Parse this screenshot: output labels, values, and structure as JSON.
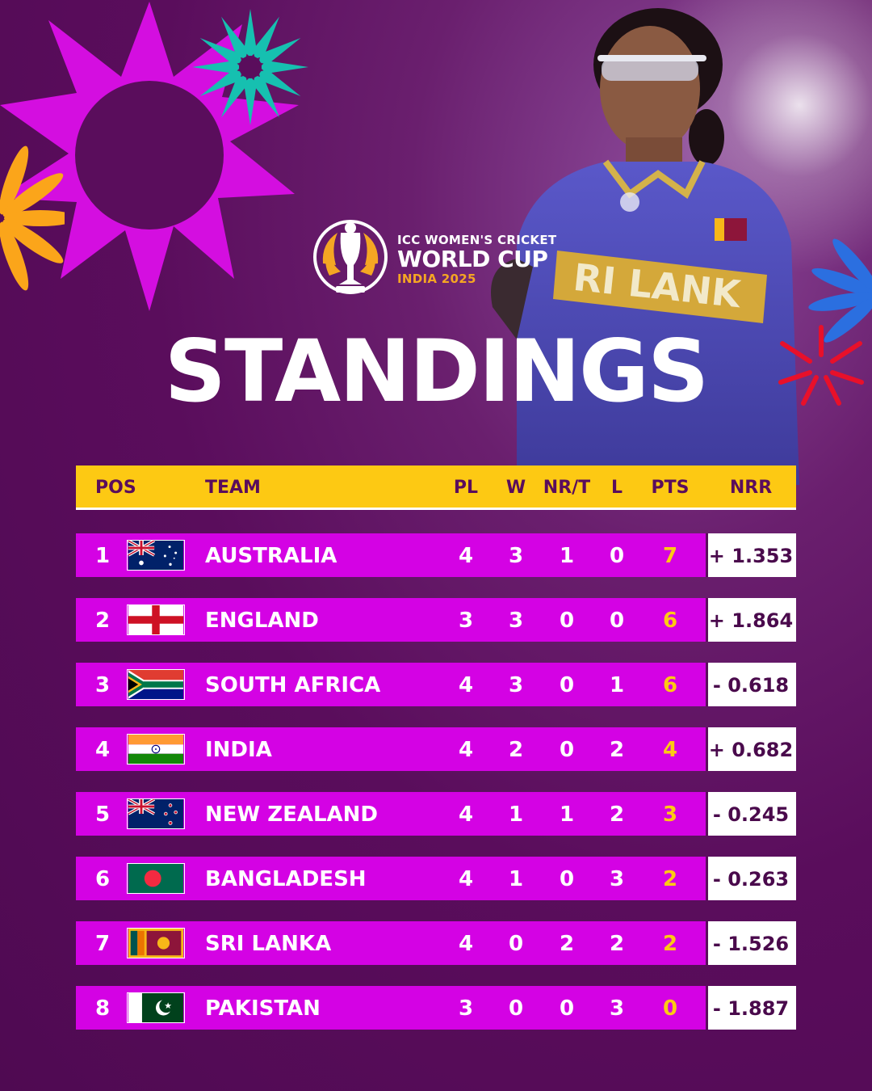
{
  "logo": {
    "line1": "ICC WOMEN'S CRICKET",
    "line2": "WORLD CUP",
    "line3": "INDIA 2025"
  },
  "title": "STANDINGS",
  "table": {
    "headers": {
      "pos": "POS",
      "team": "TEAM",
      "pl": "PL",
      "w": "W",
      "nrt": "NR/T",
      "l": "L",
      "pts": "PTS",
      "nrr": "NRR"
    },
    "rows": [
      {
        "pos": "1",
        "team": "AUSTRALIA",
        "flag": "australia-flag",
        "pl": "4",
        "w": "3",
        "nrt": "1",
        "l": "0",
        "pts": "7",
        "nrr": "+ 1.353"
      },
      {
        "pos": "2",
        "team": "ENGLAND",
        "flag": "england-flag",
        "pl": "3",
        "w": "3",
        "nrt": "0",
        "l": "0",
        "pts": "6",
        "nrr": "+ 1.864"
      },
      {
        "pos": "3",
        "team": "SOUTH AFRICA",
        "flag": "south-africa-flag",
        "pl": "4",
        "w": "3",
        "nrt": "0",
        "l": "1",
        "pts": "6",
        "nrr": "- 0.618"
      },
      {
        "pos": "4",
        "team": "INDIA",
        "flag": "india-flag",
        "pl": "4",
        "w": "2",
        "nrt": "0",
        "l": "2",
        "pts": "4",
        "nrr": "+ 0.682"
      },
      {
        "pos": "5",
        "team": "NEW ZEALAND",
        "flag": "new-zealand-flag",
        "pl": "4",
        "w": "1",
        "nrt": "1",
        "l": "2",
        "pts": "3",
        "nrr": "- 0.245"
      },
      {
        "pos": "6",
        "team": "BANGLADESH",
        "flag": "bangladesh-flag",
        "pl": "4",
        "w": "1",
        "nrt": "0",
        "l": "3",
        "pts": "2",
        "nrr": "- 0.263"
      },
      {
        "pos": "7",
        "team": "SRI LANKA",
        "flag": "sri-lanka-flag",
        "pl": "4",
        "w": "0",
        "nrt": "2",
        "l": "2",
        "pts": "2",
        "nrr": "- 1.526"
      },
      {
        "pos": "8",
        "team": "PAKISTAN",
        "flag": "pakistan-flag",
        "pl": "3",
        "w": "0",
        "nrt": "0",
        "l": "3",
        "pts": "0",
        "nrr": "- 1.887"
      }
    ]
  },
  "colors": {
    "background": "#5a0d5c",
    "row": "#d402e4",
    "header": "#fdc913",
    "points": "#fdc913"
  }
}
